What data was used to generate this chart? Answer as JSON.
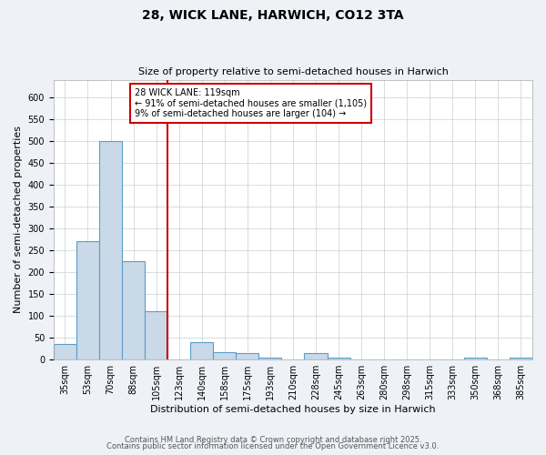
{
  "title1": "28, WICK LANE, HARWICH, CO12 3TA",
  "title2": "Size of property relative to semi-detached houses in Harwich",
  "xlabel": "Distribution of semi-detached houses by size in Harwich",
  "ylabel": "Number of semi-detached properties",
  "categories": [
    "35sqm",
    "53sqm",
    "70sqm",
    "88sqm",
    "105sqm",
    "123sqm",
    "140sqm",
    "158sqm",
    "175sqm",
    "193sqm",
    "210sqm",
    "228sqm",
    "245sqm",
    "263sqm",
    "280sqm",
    "298sqm",
    "315sqm",
    "333sqm",
    "350sqm",
    "368sqm",
    "385sqm"
  ],
  "values": [
    35,
    270,
    500,
    225,
    110,
    0,
    40,
    18,
    16,
    5,
    0,
    14,
    5,
    0,
    0,
    0,
    0,
    0,
    5,
    0,
    5
  ],
  "bar_color": "#c9d9e8",
  "bar_edge_color": "#5a9ec8",
  "annotation_text": "28 WICK LANE: 119sqm\n← 91% of semi-detached houses are smaller (1,105)\n9% of semi-detached houses are larger (104) →",
  "annotation_box_color": "#ffffff",
  "annotation_box_edge": "#cc0000",
  "ylim": [
    0,
    640
  ],
  "yticks": [
    0,
    50,
    100,
    150,
    200,
    250,
    300,
    350,
    400,
    450,
    500,
    550,
    600
  ],
  "background_color": "#eef2f7",
  "plot_bg_color": "#ffffff",
  "footer1": "Contains HM Land Registry data © Crown copyright and database right 2025.",
  "footer2": "Contains public sector information licensed under the Open Government Licence v3.0.",
  "grid_color": "#c8d0d8",
  "title1_fontsize": 10,
  "title2_fontsize": 8,
  "xlabel_fontsize": 8,
  "ylabel_fontsize": 8,
  "tick_fontsize": 7,
  "footer_fontsize": 6
}
